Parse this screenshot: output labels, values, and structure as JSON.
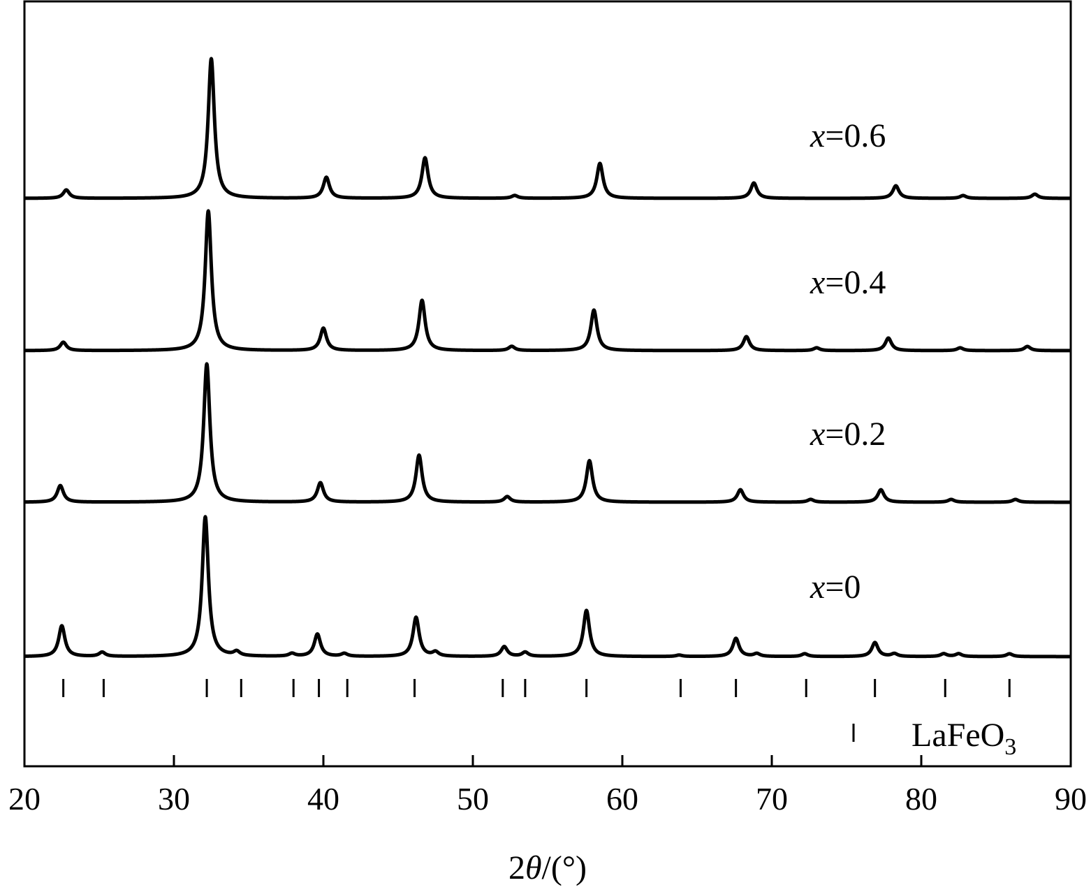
{
  "chart_data": {
    "type": "line",
    "xlabel_prefix": "2",
    "xlabel_symbol": "θ",
    "xlabel_suffix": "/(°)",
    "xlim": [
      20,
      90
    ],
    "x_ticks": [
      20,
      30,
      40,
      50,
      60,
      70,
      80,
      90
    ],
    "y_axis_ticks_shown": false,
    "grid": false,
    "legend": {
      "position": "bottom-right",
      "entries": [
        {
          "marker": "vertical-tick",
          "text_main": "LaFeO",
          "text_sub": "3"
        }
      ]
    },
    "reference_pattern": {
      "name": "LaFeO3",
      "positions": [
        22.6,
        25.3,
        32.2,
        34.5,
        38.0,
        39.7,
        41.6,
        46.1,
        52.0,
        53.5,
        57.6,
        63.9,
        67.6,
        72.3,
        76.9,
        81.6,
        85.9
      ]
    },
    "series": [
      {
        "name_var": "x",
        "name_eq": "=",
        "name_val": "0",
        "baseline": 0,
        "peaks": [
          [
            22.5,
            22
          ],
          [
            25.2,
            3
          ],
          [
            32.1,
            100
          ],
          [
            34.2,
            3
          ],
          [
            37.9,
            2
          ],
          [
            39.6,
            16
          ],
          [
            41.4,
            2
          ],
          [
            46.2,
            28
          ],
          [
            47.5,
            3
          ],
          [
            52.1,
            7
          ],
          [
            53.5,
            3
          ],
          [
            57.6,
            33
          ],
          [
            63.8,
            1
          ],
          [
            67.6,
            13
          ],
          [
            69.0,
            2
          ],
          [
            72.2,
            2
          ],
          [
            76.9,
            10
          ],
          [
            78.2,
            2
          ],
          [
            81.5,
            2
          ],
          [
            82.5,
            2
          ],
          [
            85.9,
            2
          ]
        ]
      },
      {
        "name_var": "x",
        "name_eq": "=",
        "name_val": "0.2",
        "baseline": 0,
        "peaks": [
          [
            22.4,
            12
          ],
          [
            32.2,
            100
          ],
          [
            39.8,
            14
          ],
          [
            46.4,
            34
          ],
          [
            52.3,
            4
          ],
          [
            57.8,
            30
          ],
          [
            67.9,
            9
          ],
          [
            72.6,
            2
          ],
          [
            77.3,
            9
          ],
          [
            82.0,
            2
          ],
          [
            86.3,
            2
          ]
        ]
      },
      {
        "name_var": "x",
        "name_eq": "=",
        "name_val": "0.4",
        "baseline": 0,
        "peaks": [
          [
            22.6,
            6
          ],
          [
            32.3,
            100
          ],
          [
            40.0,
            16
          ],
          [
            46.6,
            36
          ],
          [
            52.6,
            3
          ],
          [
            58.1,
            29
          ],
          [
            68.3,
            10
          ],
          [
            73.0,
            2
          ],
          [
            77.8,
            9
          ],
          [
            82.6,
            2
          ],
          [
            87.1,
            3
          ]
        ]
      },
      {
        "name_var": "x",
        "name_eq": "=",
        "name_val": "0.6",
        "baseline": 0,
        "peaks": [
          [
            22.8,
            6
          ],
          [
            32.5,
            100
          ],
          [
            40.2,
            15
          ],
          [
            46.8,
            29
          ],
          [
            52.8,
            2
          ],
          [
            58.5,
            25
          ],
          [
            68.8,
            11
          ],
          [
            78.3,
            9
          ],
          [
            82.8,
            2
          ],
          [
            87.6,
            3
          ]
        ]
      }
    ]
  }
}
